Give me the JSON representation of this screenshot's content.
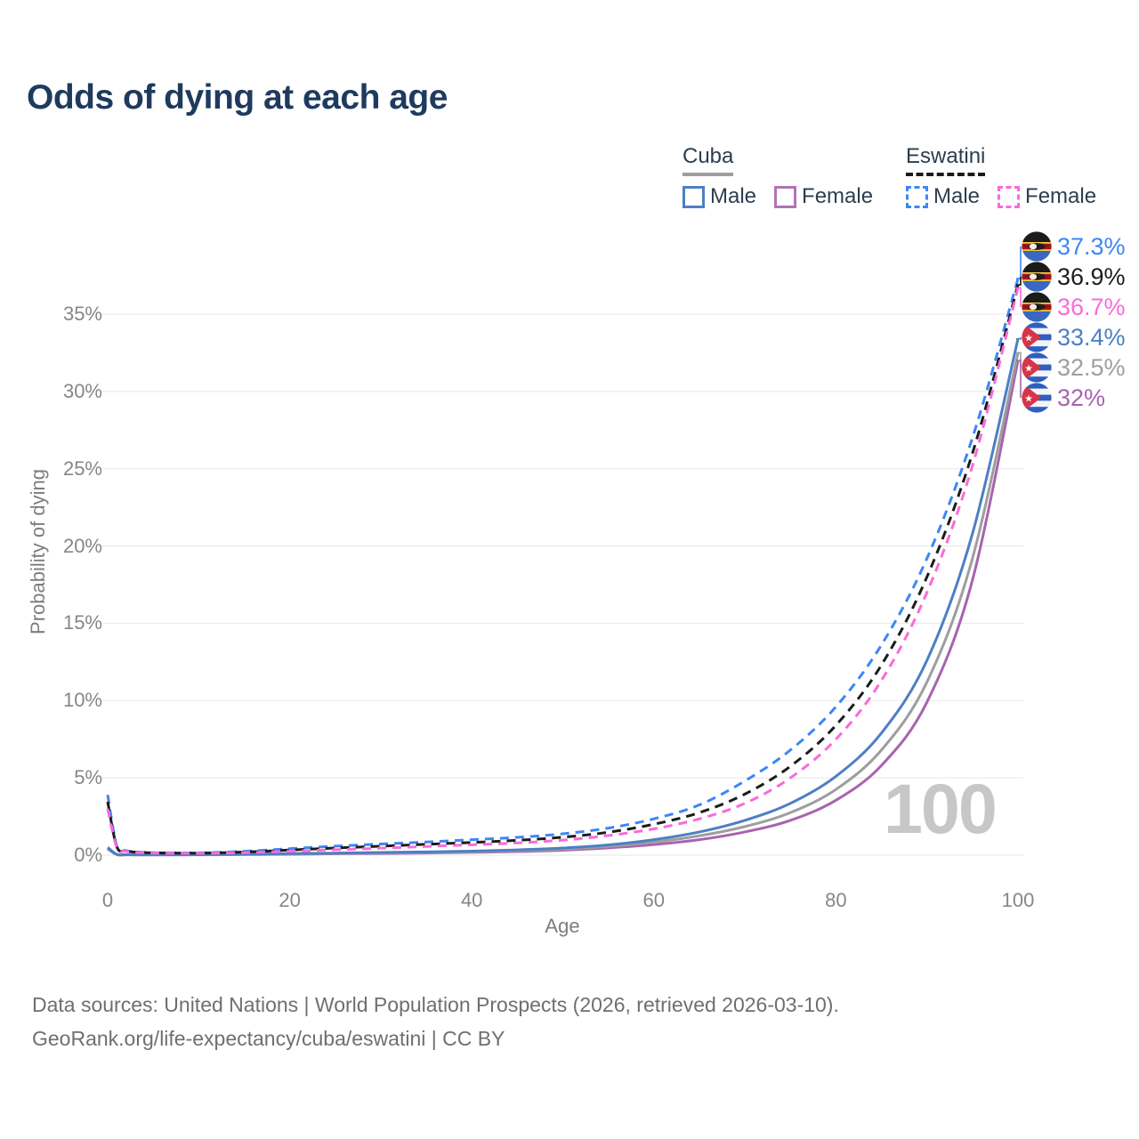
{
  "header": {
    "title": "Odds of dying at each age"
  },
  "legend": {
    "groups": [
      {
        "name": "Cuba",
        "line_style": "solid",
        "line_color": "#9e9e9e",
        "items": [
          {
            "label": "Male",
            "color": "#4d7fc4",
            "style": "solid"
          },
          {
            "label": "Female",
            "color": "#b173b5",
            "style": "solid"
          }
        ]
      },
      {
        "name": "Eswatini",
        "line_style": "dashed",
        "line_color": "#1c1c1c",
        "items": [
          {
            "label": "Male",
            "color": "#3d86f6",
            "style": "dashed"
          },
          {
            "label": "Female",
            "color": "#fb6ad8",
            "style": "dashed"
          }
        ]
      }
    ]
  },
  "chart_data": {
    "type": "line",
    "title": "Odds of dying at each age",
    "xlabel": "Age",
    "ylabel": "Probability of dying",
    "x_ticks": [
      "0",
      "20",
      "40",
      "60",
      "80",
      "100"
    ],
    "y_ticks": [
      "0%",
      "5%",
      "10%",
      "15%",
      "20%",
      "25%",
      "30%",
      "35%"
    ],
    "xlim": [
      0,
      100
    ],
    "ylim_pct": [
      0,
      38.5
    ],
    "grid": "horizontal",
    "legend_position": "top-right",
    "age_indicator": "100",
    "ages": [
      0,
      1,
      2,
      3,
      4,
      5,
      10,
      15,
      20,
      25,
      30,
      35,
      40,
      45,
      50,
      55,
      60,
      65,
      70,
      75,
      80,
      85,
      90,
      95,
      100
    ],
    "series": [
      {
        "name": "Eswatini Male",
        "flag": "eswatini",
        "sex": "Male",
        "style": "dashed",
        "color": "#3d86f6",
        "end_label": "37.3%",
        "values": [
          3.9,
          0.6,
          0.3,
          0.22,
          0.18,
          0.16,
          0.15,
          0.25,
          0.42,
          0.58,
          0.72,
          0.85,
          1.0,
          1.15,
          1.38,
          1.75,
          2.35,
          3.25,
          4.8,
          6.8,
          9.6,
          13.6,
          19.2,
          27.0,
          37.3
        ]
      },
      {
        "name": "Eswatini Both sexes",
        "flag": "eswatini",
        "sex": "Both",
        "style": "dashed",
        "color": "#1c1c1c",
        "end_label": "36.9%",
        "values": [
          3.45,
          0.55,
          0.28,
          0.2,
          0.17,
          0.15,
          0.13,
          0.2,
          0.33,
          0.46,
          0.58,
          0.7,
          0.82,
          0.96,
          1.16,
          1.48,
          2.0,
          2.75,
          3.95,
          5.75,
          8.4,
          12.3,
          18.0,
          26.0,
          36.9
        ]
      },
      {
        "name": "Eswatini Female",
        "flag": "eswatini",
        "sex": "Female",
        "style": "dashed",
        "color": "#fb6ad8",
        "end_label": "36.7%",
        "values": [
          3.0,
          0.5,
          0.25,
          0.18,
          0.15,
          0.13,
          0.12,
          0.16,
          0.25,
          0.35,
          0.45,
          0.56,
          0.67,
          0.79,
          0.97,
          1.27,
          1.7,
          2.35,
          3.35,
          5.0,
          7.5,
          11.3,
          17.0,
          25.2,
          36.7
        ]
      },
      {
        "name": "Cuba Male",
        "flag": "cuba",
        "sex": "Male",
        "style": "solid",
        "color": "#4d7fc4",
        "end_label": "33.4%",
        "values": [
          0.5,
          0.05,
          0.03,
          0.02,
          0.02,
          0.02,
          0.03,
          0.06,
          0.1,
          0.13,
          0.17,
          0.21,
          0.26,
          0.34,
          0.46,
          0.66,
          1.0,
          1.5,
          2.25,
          3.35,
          5.1,
          7.9,
          12.6,
          20.8,
          33.4
        ]
      },
      {
        "name": "Cuba Both sexes",
        "flag": "cuba",
        "sex": "Both",
        "style": "solid",
        "color": "#9e9e9e",
        "end_label": "32.5%",
        "values": [
          0.45,
          0.04,
          0.03,
          0.02,
          0.02,
          0.02,
          0.03,
          0.05,
          0.08,
          0.11,
          0.14,
          0.17,
          0.21,
          0.28,
          0.39,
          0.56,
          0.84,
          1.25,
          1.85,
          2.75,
          4.25,
          6.8,
          11.2,
          19.2,
          32.5
        ]
      },
      {
        "name": "Cuba Female",
        "flag": "cuba",
        "sex": "Female",
        "style": "solid",
        "color": "#a863ae",
        "end_label": "32%",
        "values": [
          0.4,
          0.04,
          0.02,
          0.02,
          0.02,
          0.02,
          0.02,
          0.04,
          0.06,
          0.09,
          0.11,
          0.14,
          0.18,
          0.23,
          0.32,
          0.47,
          0.68,
          1.0,
          1.5,
          2.25,
          3.55,
          5.8,
          9.9,
          17.8,
          32.0
        ]
      }
    ]
  },
  "footer": {
    "line1": "Data sources: United Nations | World Population Prospects (2026, retrieved 2026-03-10).",
    "line2": "GeoRank.org/life-expectancy/cuba/eswatini | CC BY"
  }
}
